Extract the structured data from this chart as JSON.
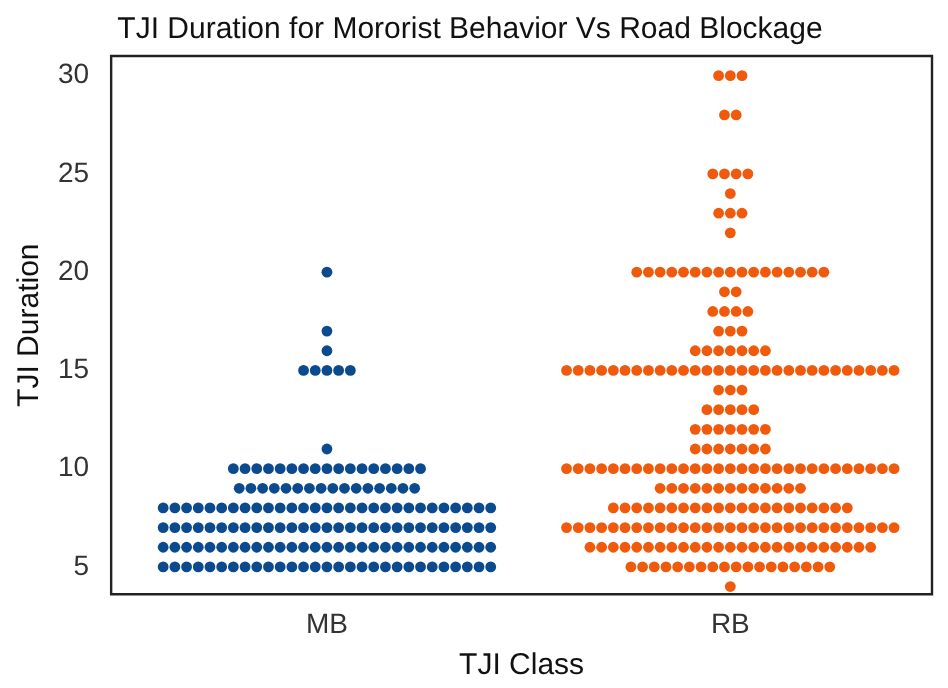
{
  "chart_data": {
    "type": "scatter",
    "title": "TJI Duration for Mororist Behavior Vs Road Blockage",
    "xlabel": "TJI Class",
    "ylabel": "TJI Duration",
    "categories": [
      "MB",
      "RB"
    ],
    "ylim": [
      3.6,
      31
    ],
    "yticks": [
      5,
      10,
      15,
      20,
      25,
      30
    ],
    "grid": false,
    "legend": false,
    "marker": "circle",
    "series": [
      {
        "color": "#0b4a8e",
        "x": [
          "MB",
          "MB",
          "MB",
          "MB",
          "MB",
          "MB",
          "MB",
          "MB",
          "MB",
          "MB",
          "MB",
          "MB",
          "MB",
          "MB",
          "MB",
          "MB",
          "MB",
          "MB",
          "MB",
          "MB",
          "MB",
          "MB",
          "MB",
          "MB",
          "MB",
          "MB",
          "MB",
          "MB",
          "MB",
          "MB",
          "MB",
          "MB",
          "MB",
          "MB",
          "MB",
          "MB",
          "MB",
          "MB",
          "MB",
          "MB",
          "MB",
          "MB",
          "MB",
          "MB",
          "MB",
          "MB",
          "MB",
          "MB",
          "MB",
          "MB",
          "MB",
          "MB",
          "MB",
          "MB",
          "MB",
          "MB",
          "MB",
          "MB",
          "MB",
          "MB",
          "MB",
          "MB",
          "MB",
          "MB",
          "MB",
          "MB",
          "MB",
          "MB",
          "MB",
          "MB",
          "MB",
          "MB",
          "MB",
          "MB",
          "MB",
          "MB",
          "MB",
          "MB",
          "MB",
          "MB",
          "MB",
          "MB",
          "MB",
          "MB",
          "MB",
          "MB",
          "MB",
          "MB",
          "MB",
          "MB",
          "MB",
          "MB",
          "MB",
          "MB",
          "MB",
          "MB",
          "MB",
          "MB",
          "MB",
          "MB",
          "MB",
          "MB",
          "MB",
          "MB",
          "MB",
          "MB",
          "MB",
          "MB",
          "MB",
          "MB",
          "MB",
          "MB",
          "MB",
          "MB",
          "MB",
          "MB",
          "MB",
          "MB",
          "MB",
          "MB",
          "MB",
          "MB",
          "MB",
          "MB",
          "MB",
          "MB",
          "MB",
          "MB",
          "MB",
          "MB",
          "MB",
          "MB",
          "MB",
          "MB",
          "MB",
          "MB",
          "MB",
          "MB",
          "MB",
          "MB",
          "MB",
          "MB",
          "MB",
          "MB",
          "MB",
          "MB",
          "MB",
          "MB",
          "MB",
          "MB",
          "MB",
          "MB",
          "MB",
          "MB",
          "MB",
          "MB",
          "MB",
          "MB"
        ],
        "values": [
          20,
          17,
          16,
          15,
          15,
          15,
          15,
          15,
          11,
          10,
          10,
          10,
          10,
          10,
          10,
          10,
          10,
          10,
          10,
          10,
          10,
          10,
          10,
          10,
          10,
          10,
          9,
          9,
          9,
          9,
          9,
          9,
          9,
          9,
          9,
          9,
          9,
          9,
          9,
          9,
          9,
          9,
          8,
          8,
          8,
          8,
          8,
          8,
          8,
          8,
          8,
          8,
          8,
          8,
          8,
          8,
          8,
          8,
          8,
          8,
          8,
          8,
          8,
          8,
          8,
          8,
          8,
          8,
          8,
          8,
          8,
          7,
          7,
          7,
          7,
          7,
          7,
          7,
          7,
          7,
          7,
          7,
          7,
          7,
          7,
          7,
          7,
          7,
          7,
          7,
          7,
          7,
          7,
          7,
          7,
          7,
          7,
          7,
          7,
          7,
          6,
          6,
          6,
          6,
          6,
          6,
          6,
          6,
          6,
          6,
          6,
          6,
          6,
          6,
          6,
          6,
          6,
          6,
          6,
          6,
          6,
          6,
          6,
          6,
          6,
          6,
          6,
          6,
          6,
          5,
          5,
          5,
          5,
          5,
          5,
          5,
          5,
          5,
          5,
          5,
          5,
          5,
          5,
          5,
          5,
          5,
          5,
          5,
          5,
          5,
          5,
          5,
          5,
          5,
          5,
          5,
          5,
          5
        ]
      },
      {
        "color": "#f05a0c",
        "x": [
          "RB",
          "RB",
          "RB",
          "RB",
          "RB",
          "RB",
          "RB",
          "RB",
          "RB",
          "RB",
          "RB",
          "RB",
          "RB",
          "RB",
          "RB",
          "RB",
          "RB",
          "RB",
          "RB",
          "RB",
          "RB",
          "RB",
          "RB",
          "RB",
          "RB",
          "RB",
          "RB",
          "RB",
          "RB",
          "RB",
          "RB",
          "RB",
          "RB",
          "RB",
          "RB",
          "RB",
          "RB",
          "RB",
          "RB",
          "RB",
          "RB",
          "RB",
          "RB",
          "RB",
          "RB",
          "RB",
          "RB",
          "RB",
          "RB",
          "RB",
          "RB",
          "RB",
          "RB",
          "RB",
          "RB",
          "RB",
          "RB",
          "RB",
          "RB",
          "RB",
          "RB",
          "RB",
          "RB",
          "RB",
          "RB",
          "RB",
          "RB",
          "RB",
          "RB",
          "RB",
          "RB",
          "RB",
          "RB",
          "RB",
          "RB",
          "RB",
          "RB",
          "RB",
          "RB",
          "RB",
          "RB",
          "RB",
          "RB",
          "RB",
          "RB",
          "RB",
          "RB",
          "RB",
          "RB",
          "RB",
          "RB",
          "RB",
          "RB",
          "RB",
          "RB",
          "RB",
          "RB",
          "RB",
          "RB",
          "RB",
          "RB",
          "RB",
          "RB",
          "RB",
          "RB",
          "RB",
          "RB",
          "RB",
          "RB",
          "RB",
          "RB",
          "RB",
          "RB",
          "RB",
          "RB",
          "RB",
          "RB",
          "RB",
          "RB",
          "RB",
          "RB",
          "RB",
          "RB",
          "RB",
          "RB",
          "RB",
          "RB",
          "RB",
          "RB",
          "RB",
          "RB",
          "RB",
          "RB",
          "RB",
          "RB",
          "RB",
          "RB",
          "RB",
          "RB",
          "RB",
          "RB",
          "RB",
          "RB",
          "RB",
          "RB",
          "RB",
          "RB",
          "RB",
          "RB",
          "RB",
          "RB",
          "RB",
          "RB",
          "RB",
          "RB",
          "RB",
          "RB",
          "RB",
          "RB",
          "RB",
          "RB",
          "RB",
          "RB",
          "RB",
          "RB",
          "RB",
          "RB",
          "RB",
          "RB",
          "RB",
          "RB",
          "RB",
          "RB",
          "RB",
          "RB",
          "RB",
          "RB",
          "RB",
          "RB",
          "RB",
          "RB",
          "RB",
          "RB",
          "RB",
          "RB",
          "RB",
          "RB",
          "RB",
          "RB",
          "RB",
          "RB",
          "RB",
          "RB",
          "RB",
          "RB",
          "RB",
          "RB",
          "RB",
          "RB",
          "RB",
          "RB",
          "RB",
          "RB",
          "RB",
          "RB",
          "RB",
          "RB",
          "RB",
          "RB",
          "RB",
          "RB",
          "RB",
          "RB",
          "RB",
          "RB",
          "RB",
          "RB",
          "RB",
          "RB",
          "RB",
          "RB",
          "RB",
          "RB",
          "RB",
          "RB",
          "RB",
          "RB",
          "RB",
          "RB",
          "RB",
          "RB",
          "RB",
          "RB",
          "RB"
        ],
        "values": [
          30,
          30,
          30,
          28,
          28,
          25,
          25,
          25,
          25,
          24,
          23,
          23,
          23,
          22,
          20,
          20,
          20,
          20,
          20,
          20,
          20,
          20,
          20,
          20,
          20,
          20,
          20,
          20,
          20,
          20,
          20,
          19,
          19,
          18,
          18,
          18,
          18,
          17,
          17,
          17,
          16,
          16,
          16,
          16,
          16,
          16,
          16,
          15,
          15,
          15,
          15,
          15,
          15,
          15,
          15,
          15,
          15,
          15,
          15,
          15,
          15,
          15,
          15,
          15,
          15,
          15,
          15,
          15,
          15,
          15,
          15,
          15,
          15,
          15,
          15,
          15,
          14,
          14,
          14,
          13,
          13,
          13,
          13,
          13,
          12,
          12,
          12,
          12,
          12,
          12,
          12,
          11,
          11,
          11,
          11,
          11,
          11,
          11,
          10,
          10,
          10,
          10,
          10,
          10,
          10,
          10,
          10,
          10,
          10,
          10,
          10,
          10,
          10,
          10,
          10,
          10,
          10,
          10,
          10,
          10,
          10,
          10,
          10,
          10,
          10,
          10,
          10,
          9,
          9,
          9,
          9,
          9,
          9,
          9,
          9,
          9,
          9,
          9,
          9,
          9,
          8,
          8,
          8,
          8,
          8,
          8,
          8,
          8,
          8,
          8,
          8,
          8,
          8,
          8,
          8,
          8,
          8,
          8,
          8,
          8,
          8,
          7,
          7,
          7,
          7,
          7,
          7,
          7,
          7,
          7,
          7,
          7,
          7,
          7,
          7,
          7,
          7,
          7,
          7,
          7,
          7,
          7,
          7,
          7,
          7,
          7,
          7,
          7,
          7,
          7,
          6,
          6,
          6,
          6,
          6,
          6,
          6,
          6,
          6,
          6,
          6,
          6,
          6,
          6,
          6,
          6,
          6,
          6,
          6,
          6,
          6,
          6,
          6,
          6,
          6,
          5,
          5,
          5,
          5,
          5,
          5,
          5,
          5,
          5,
          5,
          5,
          5,
          5,
          5,
          5,
          5,
          5,
          5,
          4
        ]
      }
    ]
  }
}
